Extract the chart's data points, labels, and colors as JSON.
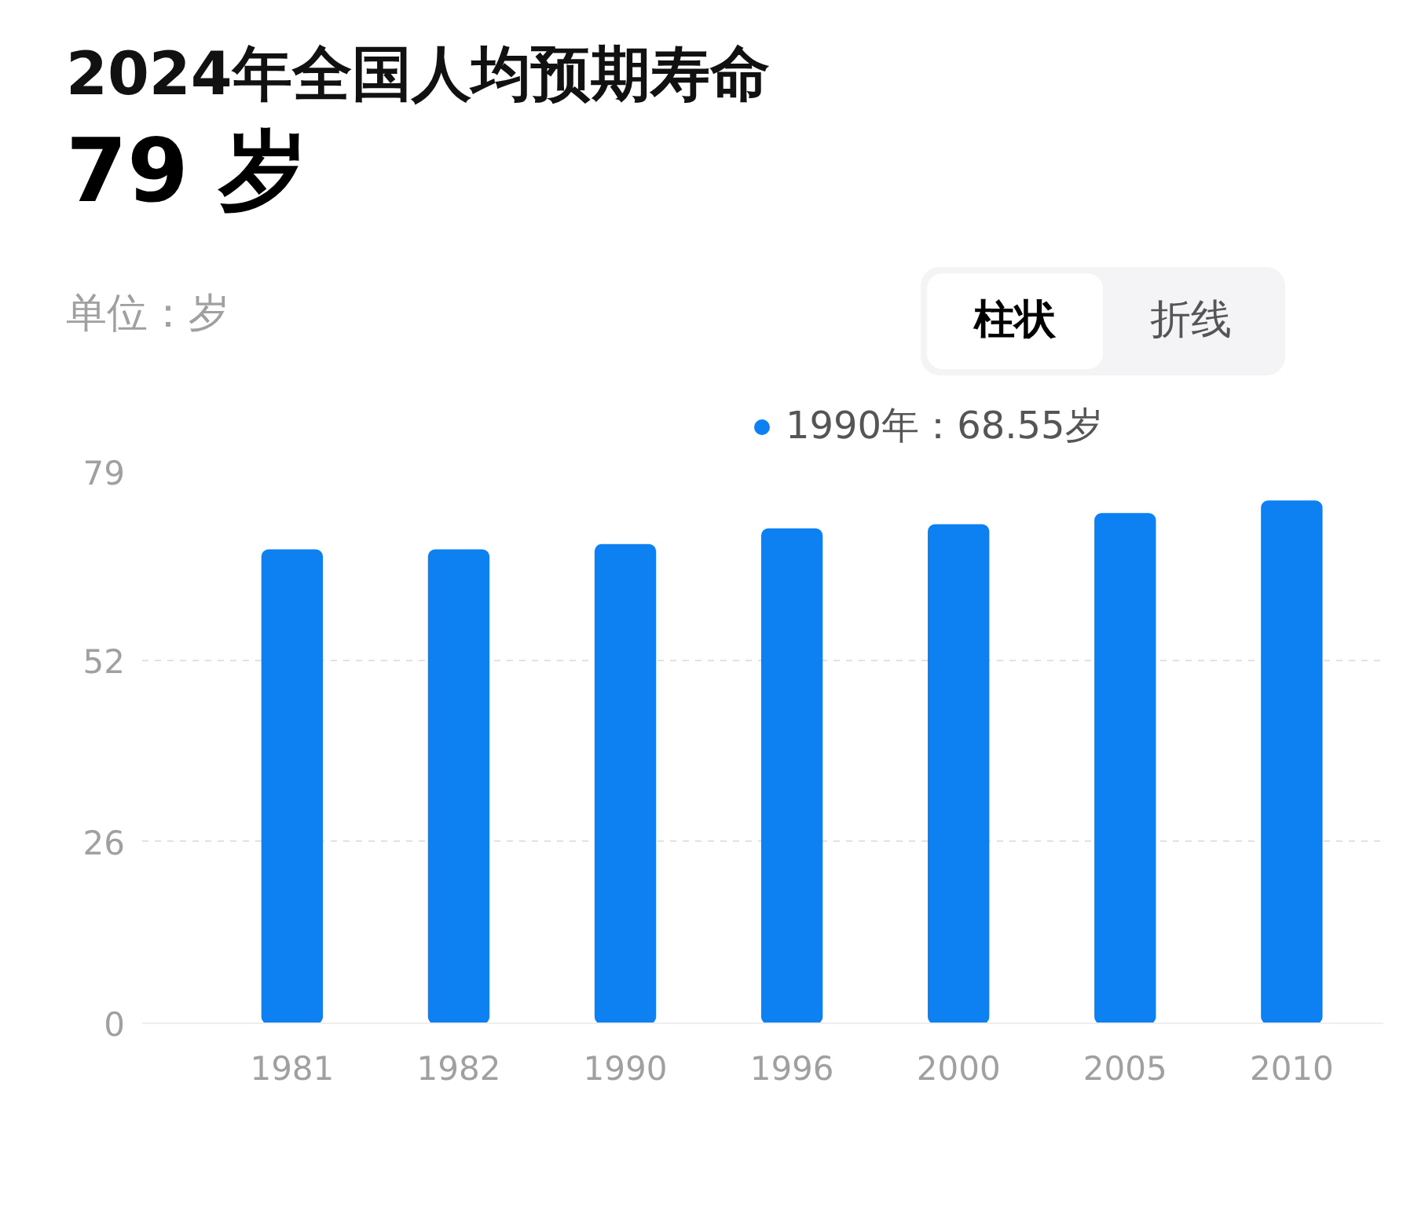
{
  "chart_data": {
    "type": "bar",
    "title": "2024年全国人均预期寿命",
    "subtitle": "79 岁",
    "ylabel": "单位：岁",
    "categories": [
      "1981",
      "1982",
      "1990",
      "1996",
      "2000",
      "2005",
      "2010"
    ],
    "values": [
      67.8,
      67.8,
      68.55,
      70.8,
      71.4,
      73.0,
      74.8
    ],
    "color": "#0d80f2",
    "ylim": [
      0,
      79
    ],
    "yticks": [
      0,
      26,
      52,
      79
    ],
    "grid": "y",
    "annotations": [
      "柱状",
      "折线",
      "1990年：68.55岁"
    ]
  }
}
